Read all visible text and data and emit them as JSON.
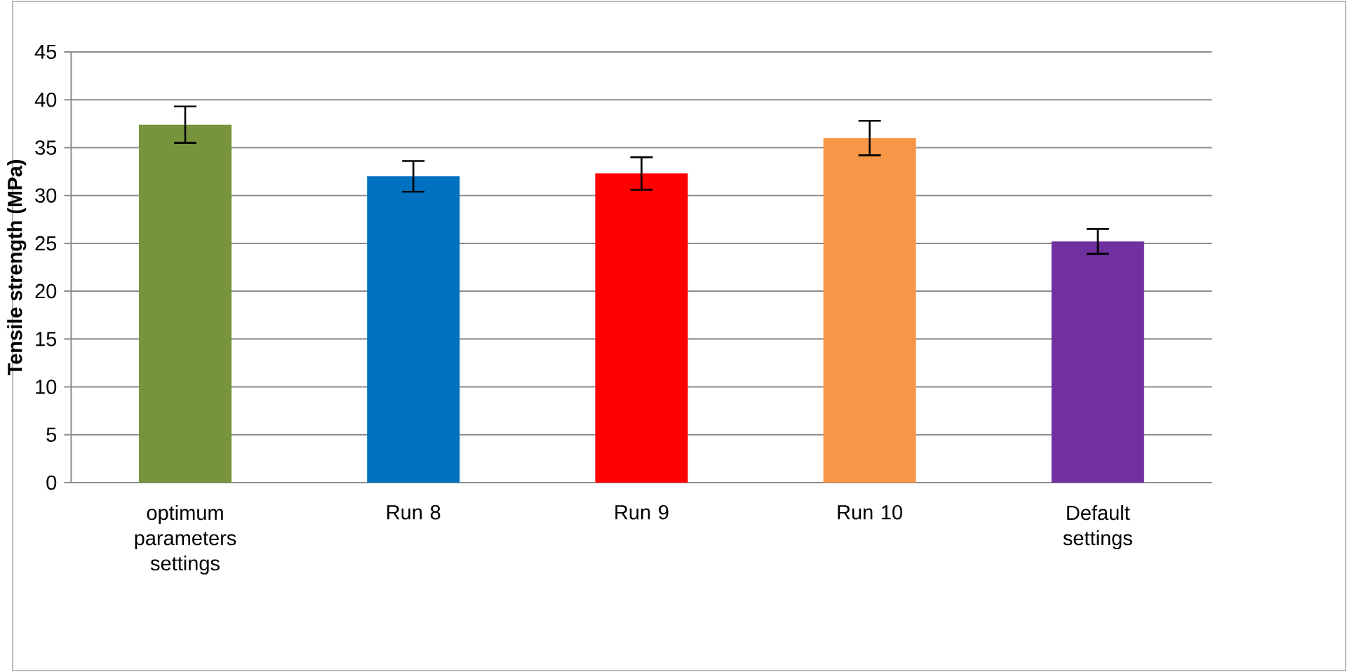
{
  "chart_data": {
    "type": "bar",
    "ylabel": "Tensile strength (MPa)",
    "categories": [
      "optimum parameters settings",
      "Run 8",
      "Run 9",
      "Run 10",
      "Default settings"
    ],
    "values": [
      37.4,
      32.0,
      32.3,
      36.0,
      25.2
    ],
    "errors": [
      1.9,
      1.6,
      1.7,
      1.8,
      1.3
    ],
    "colors": [
      "#77933c",
      "#0070c0",
      "#ff0000",
      "#f79646",
      "#7030a0"
    ],
    "ylim": [
      0,
      45
    ],
    "yticks": [
      0,
      5,
      10,
      15,
      20,
      25,
      30,
      35,
      40,
      45
    ],
    "grid": "y"
  }
}
